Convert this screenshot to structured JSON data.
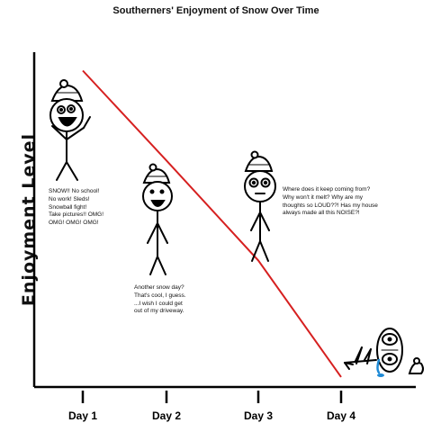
{
  "chart_data": {
    "type": "line",
    "title": "Southerners' Enjoyment of Snow Over Time",
    "ylabel": "Enjoyment Level",
    "xlabel": "",
    "categories": [
      "Day 1",
      "Day 2",
      "Day 3",
      "Day 4"
    ],
    "series": [
      {
        "values": [
          95,
          68,
          38,
          3
        ],
        "color": "#d62020"
      }
    ],
    "ylim": [
      0,
      100
    ],
    "grid": false,
    "legend": "none"
  },
  "annotations": {
    "day1": "SNOW!! No school!\nNo work! Sleds!\nSnowball fight!\nTake pictures!! OMG!\nOMG! OMG! OMG!",
    "day2": "Another snow day?\nThat's cool, I guess.\n...I wish I could get\nout of my driveway.",
    "day3": "Where does it keep coming from?\nWhy won't it melt? Why are my\nthoughts so LOUD??! Has my house\nalways made all this NOISE?!"
  }
}
